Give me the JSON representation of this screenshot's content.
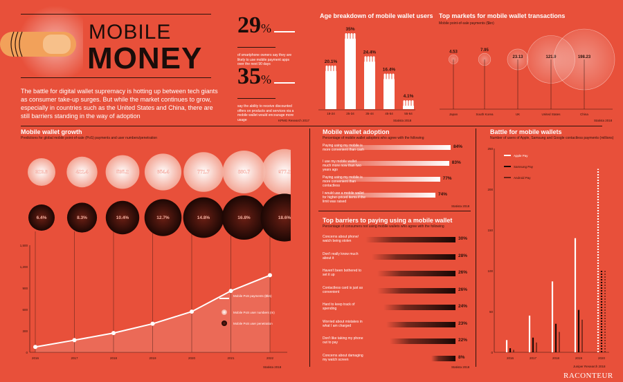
{
  "header": {
    "title_line1": "MOBILE",
    "title_line2": "MONEY",
    "intro": "The battle for digital wallet supremacy is hotting up between tech giants as consumer take-up surges. But while the market continues to grow, especially in countries such as the United States and China, there are still barriers standing in the way of adoption"
  },
  "stats": [
    {
      "value": "29",
      "unit": "%",
      "text": "of smartphone owners say they are likely to use mobile payment apps over the next 90 days"
    },
    {
      "value": "35",
      "unit": "%",
      "text": "say the ability to receive discounted offers on products and services via a mobile wallet would encourage more usage"
    }
  ],
  "stats_source": "KPMG Research 2017",
  "age_chart": {
    "title": "Age breakdown of mobile wallet users",
    "source": "Statista 2018",
    "chart_data": {
      "type": "bar",
      "categories": [
        "18-24",
        "25-34",
        "35-44",
        "45-54",
        "55-64"
      ],
      "values": [
        20.1,
        35,
        24.4,
        16.4,
        4.1
      ],
      "labels": [
        "20.1%",
        "35%",
        "24.4%",
        "16.4%",
        "4.1%"
      ]
    }
  },
  "top_markets": {
    "title": "Top markets for mobile wallet transactions",
    "subtitle": "Mobile point-of-sale payments ($bn)",
    "source": "Statista 2018",
    "chart_data": {
      "type": "bubble",
      "categories": [
        "Japan",
        "South Korea",
        "UK",
        "United States",
        "China"
      ],
      "values": [
        4.53,
        7.95,
        23.13,
        121.9,
        198.23
      ],
      "labels": [
        "4.53",
        "7.95",
        "23.13",
        "121.9",
        "198.23"
      ]
    }
  },
  "growth": {
    "title": "Mobile wallet growth",
    "subtitle": "Predictions for global mobile point-of-sale (PoS) payments and user numbers/penetration",
    "source": "Statista 2018",
    "legend": [
      "Mobile PoS payments ($bn)",
      "Mobile PoS user numbers (m)",
      "Mobile PoS user penetration"
    ],
    "chart_data": {
      "type": "line",
      "x": [
        "2016",
        "2017",
        "2018",
        "2019",
        "2020",
        "2021",
        "2022"
      ],
      "payments": [
        75,
        170,
        270,
        400,
        570,
        860,
        1080
      ],
      "users": [
        "323.6",
        "422.4",
        "535.2",
        "654.4",
        "771.7",
        "880.7",
        "977.2"
      ],
      "penetration": [
        "6.4%",
        "8.3%",
        "10.4%",
        "12.7%",
        "14.8%",
        "16.8%",
        "18.6%"
      ],
      "y_ticks": [
        "1,500",
        "1,200",
        "900",
        "600",
        "300",
        "0"
      ],
      "ylim": [
        0,
        1500
      ]
    }
  },
  "adoption": {
    "title": "Mobile wallet adoption",
    "subtitle": "Percentage of mobile wallet adopters who agree with the following",
    "source": "Statista 2018",
    "chart_data": {
      "type": "bar",
      "categories": [
        "Paying using my mobile is more convenient than cash",
        "I use my mobile wallet much more now than two years ago",
        "Paying using my mobile is more convenient than contactless",
        "I would use a mobile wallet for higher-priced items if the limit was raised"
      ],
      "values": [
        84,
        83,
        77,
        74
      ],
      "labels": [
        "84%",
        "83%",
        "77%",
        "74%"
      ]
    }
  },
  "barriers": {
    "title": "Top barriers to paying using a mobile wallet",
    "subtitle": "Percentage of consumers not using mobile wallets who agree with the following",
    "source": "Statista 2018",
    "chart_data": {
      "type": "bar",
      "categories": [
        "Concerns about phone/ watch being stolen",
        "Don't really know much about it",
        "Haven't been bothered to set it up",
        "Contactless card is just as convenient",
        "Hard to keep track of spending",
        "Worried about mistakes in what I am charged",
        "Don't like taking my phone out to pay",
        "Concerns about damaging my watch screen"
      ],
      "values": [
        30,
        28,
        26,
        26,
        24,
        23,
        22,
        8
      ],
      "labels": [
        "30%",
        "28%",
        "26%",
        "26%",
        "24%",
        "23%",
        "22%",
        "8%"
      ]
    }
  },
  "battle": {
    "title": "Battle for mobile wallets",
    "subtitle": "Number of users of Apple, Samsung and Google contactless payments (millions)",
    "source": "Juniper Research 2018",
    "legend": [
      "Apple Pay",
      "Samsung Pay",
      "Android Pay"
    ],
    "chart_data": {
      "type": "bar",
      "categories": [
        "2016",
        "2017",
        "2018",
        "2019",
        "2020"
      ],
      "series": [
        {
          "name": "Apple Pay",
          "values": [
            15,
            45,
            87,
            140,
            225
          ]
        },
        {
          "name": "Samsung Pay",
          "values": [
            5,
            18,
            35,
            52,
            100
          ]
        },
        {
          "name": "Android Pay",
          "values": [
            3,
            12,
            25,
            40,
            100
          ]
        }
      ],
      "y_ticks": [
        "250",
        "200",
        "150",
        "100",
        "50",
        "0"
      ],
      "ylim": [
        0,
        250
      ]
    }
  },
  "brand": "RACONTEUR",
  "colors": {
    "background": "#e8503a",
    "dark": "#2a120c",
    "white": "#ffffff"
  }
}
